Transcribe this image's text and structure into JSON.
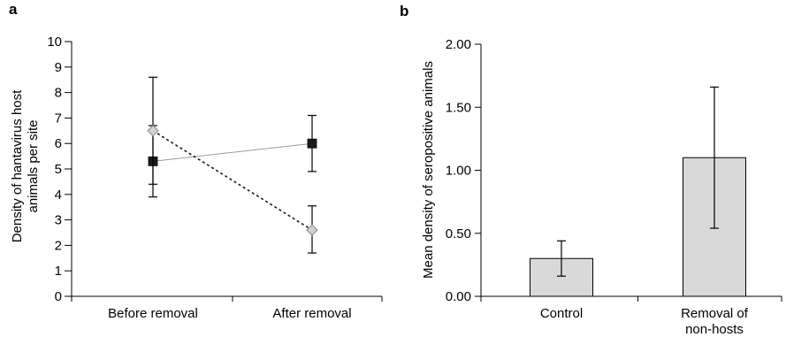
{
  "chart_data": [
    {
      "panel_label": "a",
      "type": "line",
      "categories": [
        "Before removal",
        "After removal"
      ],
      "ylabel": [
        "Density of hantavirus host",
        "animals per site"
      ],
      "ylim": [
        0,
        10
      ],
      "yticks": [
        "0",
        "1",
        "2",
        "3",
        "4",
        "5",
        "6",
        "7",
        "8",
        "9",
        "10"
      ],
      "grid": false,
      "legend": "none",
      "series": [
        {
          "marker": "square",
          "line_style": "solid",
          "color": "#1a1a1a",
          "line_color": "#9a9a9a",
          "values": [
            5.3,
            6.0
          ],
          "error_low": [
            3.9,
            4.9
          ],
          "error_high": [
            6.7,
            7.1
          ]
        },
        {
          "marker": "diamond",
          "line_style": "dotted",
          "color": "#d0d0d0",
          "line_color": "#1a1a1a",
          "values": [
            6.5,
            2.6
          ],
          "error_low": [
            4.4,
            1.7
          ],
          "error_high": [
            8.6,
            3.55
          ]
        }
      ]
    },
    {
      "panel_label": "b",
      "type": "bar",
      "categories": [
        [
          "Control"
        ],
        [
          "Removal of",
          "non-hosts"
        ]
      ],
      "ylabel": [
        "Mean density of seropositive animals"
      ],
      "ylim": [
        0,
        2
      ],
      "yticks": [
        "0.00",
        "0.50",
        "1.00",
        "1.50",
        "2.00"
      ],
      "grid": false,
      "legend": "none",
      "bar_color": "#d9d9d9",
      "values": [
        0.3,
        1.1
      ],
      "error_low": [
        0.16,
        0.54
      ],
      "error_high": [
        0.44,
        1.66
      ]
    }
  ]
}
